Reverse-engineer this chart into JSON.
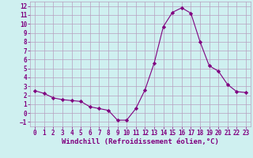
{
  "x": [
    0,
    1,
    2,
    3,
    4,
    5,
    6,
    7,
    8,
    9,
    10,
    11,
    12,
    13,
    14,
    15,
    16,
    17,
    18,
    19,
    20,
    21,
    22,
    23
  ],
  "y": [
    2.5,
    2.2,
    1.7,
    1.5,
    1.4,
    1.3,
    0.7,
    0.5,
    0.3,
    -0.8,
    -0.8,
    0.5,
    2.6,
    5.6,
    9.7,
    11.3,
    11.8,
    11.2,
    8.0,
    5.3,
    4.7,
    3.2,
    2.4,
    2.3
  ],
  "line_color": "#800080",
  "marker": "D",
  "marker_size": 2.2,
  "bg_color": "#cff0f0",
  "grid_color": "#b8a0c0",
  "xlabel": "Windchill (Refroidissement éolien,°C)",
  "xlim": [
    -0.5,
    23.5
  ],
  "ylim": [
    -1.5,
    12.5
  ],
  "xticks": [
    0,
    1,
    2,
    3,
    4,
    5,
    6,
    7,
    8,
    9,
    10,
    11,
    12,
    13,
    14,
    15,
    16,
    17,
    18,
    19,
    20,
    21,
    22,
    23
  ],
  "yticks": [
    -1,
    0,
    1,
    2,
    3,
    4,
    5,
    6,
    7,
    8,
    9,
    10,
    11,
    12
  ],
  "tick_fontsize": 5.5,
  "xlabel_fontsize": 6.5
}
